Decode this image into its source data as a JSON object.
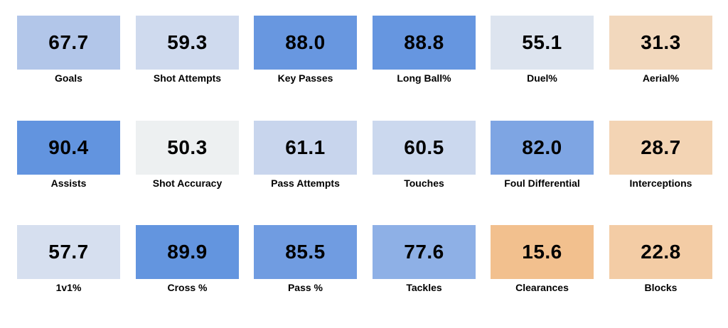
{
  "chart_data": {
    "type": "heatmap",
    "title": "",
    "columns": 6,
    "color_scale": {
      "low": "#f2c08e",
      "mid": "#edf0f1",
      "high": "#6294df"
    },
    "cells": [
      {
        "label": "Goals",
        "value": 67.7,
        "color": "#b2c6e9"
      },
      {
        "label": "Shot Attempts",
        "value": 59.3,
        "color": "#cfdaee"
      },
      {
        "label": "Key Passes",
        "value": 88.0,
        "color": "#6897e0"
      },
      {
        "label": "Long Ball%",
        "value": 88.8,
        "color": "#6696e0"
      },
      {
        "label": "Duel%",
        "value": 55.1,
        "color": "#dde4ef"
      },
      {
        "label": "Aerial%",
        "value": 31.3,
        "color": "#f2d8bd"
      },
      {
        "label": "Assists",
        "value": 90.4,
        "color": "#6294df"
      },
      {
        "label": "Shot Accuracy",
        "value": 50.3,
        "color": "#edf0f1"
      },
      {
        "label": "Pass Attempts",
        "value": 61.1,
        "color": "#c8d5ed"
      },
      {
        "label": "Touches",
        "value": 60.5,
        "color": "#cbd8ee"
      },
      {
        "label": "Foul Differential",
        "value": 82.0,
        "color": "#7ea5e3"
      },
      {
        "label": "Interceptions",
        "value": 28.7,
        "color": "#f3d4b4"
      },
      {
        "label": "1v1%",
        "value": 57.7,
        "color": "#d6dfef"
      },
      {
        "label": "Cross %",
        "value": 89.9,
        "color": "#6395df"
      },
      {
        "label": "Pass %",
        "value": 85.5,
        "color": "#709ce1"
      },
      {
        "label": "Tackles",
        "value": 77.6,
        "color": "#8eb0e6"
      },
      {
        "label": "Clearances",
        "value": 15.6,
        "color": "#f2c08e"
      },
      {
        "label": "Blocks",
        "value": 22.8,
        "color": "#f3cca5"
      }
    ]
  }
}
